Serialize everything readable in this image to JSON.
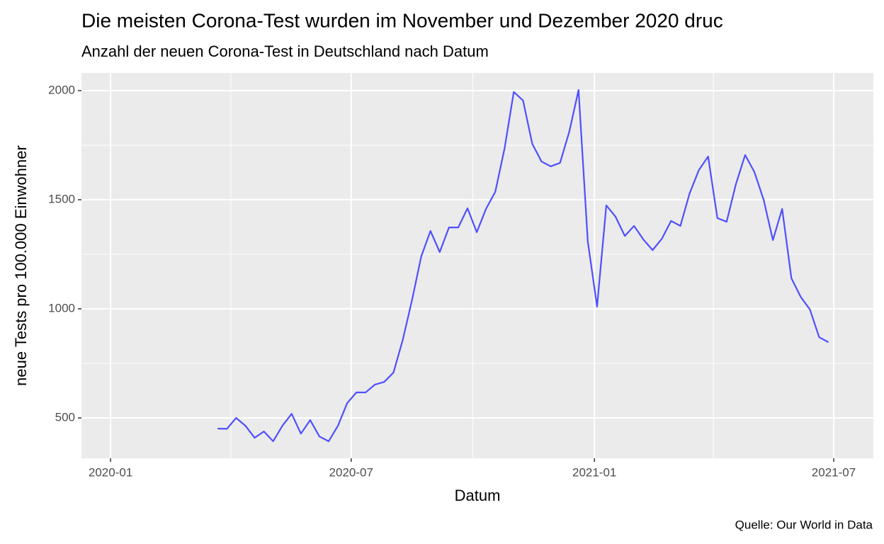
{
  "chart_data": {
    "type": "line",
    "title": "Die meisten Corona-Test wurden im November und Dezember 2020 druc",
    "subtitle": "Anzahl der neuen Corona-Test in Deutschland nach Datum",
    "x_label": "Datum",
    "y_label": "neue Tests pro 100.000 Einwohner",
    "caption": "Quelle: Our World in Data",
    "x": [
      "2020-03-22",
      "2020-03-29",
      "2020-04-05",
      "2020-04-12",
      "2020-04-19",
      "2020-04-26",
      "2020-05-03",
      "2020-05-10",
      "2020-05-17",
      "2020-05-24",
      "2020-05-31",
      "2020-06-07",
      "2020-06-14",
      "2020-06-21",
      "2020-06-28",
      "2020-07-05",
      "2020-07-12",
      "2020-07-19",
      "2020-07-26",
      "2020-08-02",
      "2020-08-09",
      "2020-08-16",
      "2020-08-23",
      "2020-08-30",
      "2020-09-06",
      "2020-09-13",
      "2020-09-20",
      "2020-09-27",
      "2020-10-04",
      "2020-10-11",
      "2020-10-18",
      "2020-10-25",
      "2020-11-01",
      "2020-11-08",
      "2020-11-15",
      "2020-11-22",
      "2020-11-29",
      "2020-12-06",
      "2020-12-13",
      "2020-12-20",
      "2020-12-27",
      "2021-01-03",
      "2021-01-10",
      "2021-01-17",
      "2021-01-24",
      "2021-01-31",
      "2021-02-07",
      "2021-02-14",
      "2021-02-21",
      "2021-02-28",
      "2021-03-07",
      "2021-03-14",
      "2021-03-21",
      "2021-03-28",
      "2021-04-04",
      "2021-04-11",
      "2021-04-18",
      "2021-04-25",
      "2021-05-02",
      "2021-05-09",
      "2021-05-16",
      "2021-05-23",
      "2021-05-30",
      "2021-06-06",
      "2021-06-13",
      "2021-06-20",
      "2021-06-27"
    ],
    "series": [
      {
        "color": "#4f4fff",
        "values": [
          451,
          450,
          500,
          464,
          409,
          438,
          393,
          464,
          519,
          428,
          490,
          415,
          393,
          464,
          568,
          617,
          617,
          653,
          665,
          708,
          857,
          1039,
          1240,
          1357,
          1260,
          1373,
          1373,
          1461,
          1351,
          1458,
          1536,
          1734,
          1994,
          1955,
          1756,
          1675,
          1653,
          1669,
          1812,
          2003,
          1308,
          1010,
          1474,
          1422,
          1334,
          1380,
          1318,
          1269,
          1321,
          1403,
          1380,
          1529,
          1636,
          1698,
          1416,
          1399,
          1571,
          1705,
          1627,
          1500,
          1315,
          1458,
          1140,
          1055,
          997,
          870,
          847
        ]
      }
    ],
    "xlim": [
      "2019-12-10",
      "2021-07-31"
    ],
    "xticks": [
      {
        "value": "2020-01-01",
        "label": "2020-01"
      },
      {
        "value": "2020-07-01",
        "label": "2020-07"
      },
      {
        "value": "2021-01-01",
        "label": "2021-01"
      },
      {
        "value": "2021-07-01",
        "label": "2021-07"
      }
    ],
    "minor_xticks": [
      "2020-04-01",
      "2020-10-01",
      "2021-04-01"
    ],
    "ylim": [
      315,
      2081
    ],
    "yticks": [
      500,
      1000,
      1500,
      2000
    ],
    "minor_yticks": [
      750,
      1250,
      1750
    ],
    "grid": true
  }
}
